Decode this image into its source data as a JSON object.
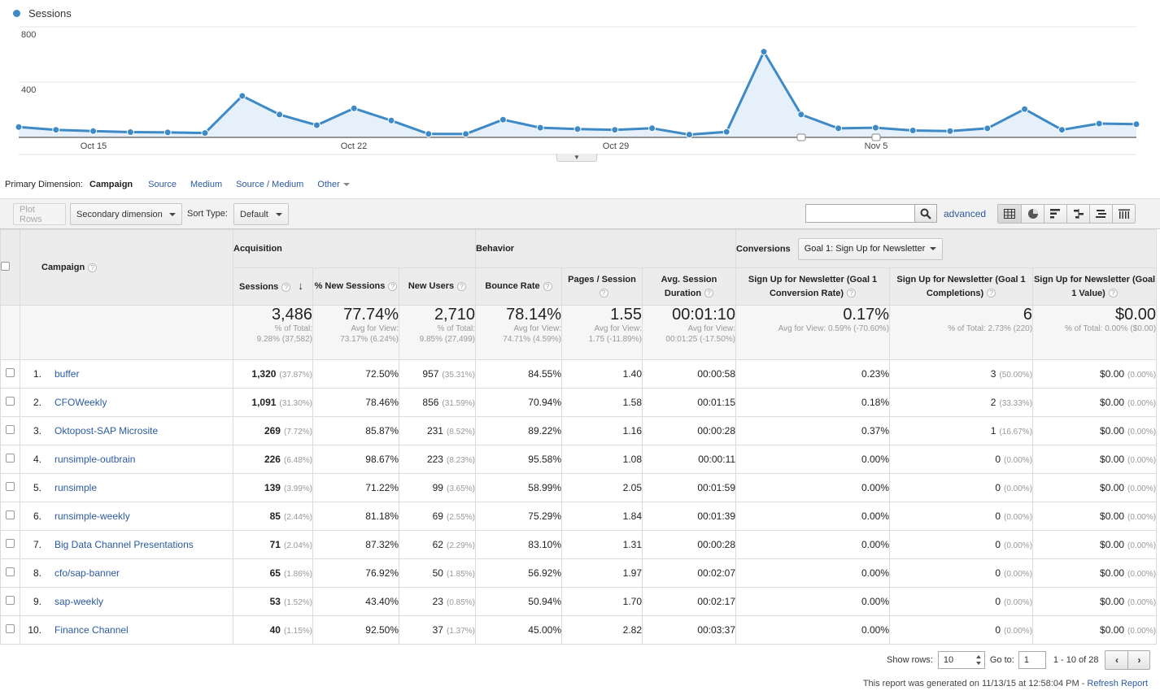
{
  "chart_data": {
    "type": "line",
    "series": [
      {
        "name": "Sessions",
        "values": [
          75,
          55,
          45,
          38,
          36,
          32,
          300,
          165,
          88,
          210,
          122,
          25,
          25,
          128,
          70,
          60,
          55,
          66,
          20,
          40,
          620,
          165,
          65,
          70,
          50,
          45,
          65,
          205,
          55,
          100,
          95
        ]
      }
    ],
    "yticks": [
      "800",
      "400"
    ],
    "ylim": [
      0,
      800
    ],
    "xtick_labels": [
      "Oct 15",
      "Oct 22",
      "Oct 29",
      "Nov 5"
    ],
    "colors": {
      "line": "#3d8ac7",
      "fill": "#e6f0fa"
    }
  },
  "legend": {
    "label": "Sessions"
  },
  "primary_dimension": {
    "label": "Primary Dimension:",
    "active": "Campaign",
    "links": [
      "Source",
      "Medium",
      "Source / Medium",
      "Other"
    ]
  },
  "toolbar": {
    "plot_rows": "Plot Rows",
    "secondary_dimension": "Secondary dimension",
    "sort_type_label": "Sort Type:",
    "sort_type_value": "Default",
    "search_value": "",
    "advanced": "advanced"
  },
  "table": {
    "campaign_header": "Campaign",
    "groups": {
      "acquisition": "Acquisition",
      "behavior": "Behavior",
      "conversions": "Conversions",
      "goal_select": "Goal 1: Sign Up for Newsletter"
    },
    "columns": [
      "Sessions",
      "% New Sessions",
      "New Users",
      "Bounce Rate",
      "Pages / Session",
      "Avg. Session Duration",
      "Sign Up for Newsletter (Goal 1 Conversion Rate)",
      "Sign Up for Newsletter (Goal 1 Completions)",
      "Sign Up for Newsletter (Goal 1 Value)"
    ],
    "totals": [
      {
        "value": "3,486",
        "sub1": "% of Total:",
        "sub2": "9.28% (37,582)"
      },
      {
        "value": "77.74%",
        "sub1": "Avg for View:",
        "sub2": "73.17% (6.24%)"
      },
      {
        "value": "2,710",
        "sub1": "% of Total:",
        "sub2": "9.85% (27,499)"
      },
      {
        "value": "78.14%",
        "sub1": "Avg for View:",
        "sub2": "74.71% (4.59%)"
      },
      {
        "value": "1.55",
        "sub1": "Avg for View:",
        "sub2": "1.75 (-11.89%)"
      },
      {
        "value": "00:01:10",
        "sub1": "Avg for View:",
        "sub2": "00:01:25 (-17.50%)"
      },
      {
        "value": "0.17%",
        "sub1": "Avg for View: 0.59% (-70.60%)",
        "sub2": ""
      },
      {
        "value": "6",
        "sub1": "% of Total: 2.73% (220)",
        "sub2": ""
      },
      {
        "value": "$0.00",
        "sub1": "% of Total: 0.00% ($0.00)",
        "sub2": ""
      }
    ],
    "rows": [
      {
        "n": "1.",
        "name": "buffer",
        "sessions": "1,320",
        "sessions_pct": "(37.87%)",
        "new_sessions": "72.50%",
        "new_users": "957",
        "new_users_pct": "(35.31%)",
        "bounce": "84.55%",
        "pages": "1.40",
        "duration": "00:00:58",
        "conv_rate": "0.23%",
        "completions": "3",
        "completions_pct": "(50.00%)",
        "value": "$0.00",
        "value_pct": "(0.00%)"
      },
      {
        "n": "2.",
        "name": "CFOWeekly",
        "sessions": "1,091",
        "sessions_pct": "(31.30%)",
        "new_sessions": "78.46%",
        "new_users": "856",
        "new_users_pct": "(31.59%)",
        "bounce": "70.94%",
        "pages": "1.58",
        "duration": "00:01:15",
        "conv_rate": "0.18%",
        "completions": "2",
        "completions_pct": "(33.33%)",
        "value": "$0.00",
        "value_pct": "(0.00%)"
      },
      {
        "n": "3.",
        "name": "Oktopost-SAP Microsite",
        "sessions": "269",
        "sessions_pct": "(7.72%)",
        "new_sessions": "85.87%",
        "new_users": "231",
        "new_users_pct": "(8.52%)",
        "bounce": "89.22%",
        "pages": "1.16",
        "duration": "00:00:28",
        "conv_rate": "0.37%",
        "completions": "1",
        "completions_pct": "(16.67%)",
        "value": "$0.00",
        "value_pct": "(0.00%)"
      },
      {
        "n": "4.",
        "name": "runsimple-outbrain",
        "sessions": "226",
        "sessions_pct": "(6.48%)",
        "new_sessions": "98.67%",
        "new_users": "223",
        "new_users_pct": "(8.23%)",
        "bounce": "95.58%",
        "pages": "1.08",
        "duration": "00:00:11",
        "conv_rate": "0.00%",
        "completions": "0",
        "completions_pct": "(0.00%)",
        "value": "$0.00",
        "value_pct": "(0.00%)"
      },
      {
        "n": "5.",
        "name": "runsimple",
        "sessions": "139",
        "sessions_pct": "(3.99%)",
        "new_sessions": "71.22%",
        "new_users": "99",
        "new_users_pct": "(3.65%)",
        "bounce": "58.99%",
        "pages": "2.05",
        "duration": "00:01:59",
        "conv_rate": "0.00%",
        "completions": "0",
        "completions_pct": "(0.00%)",
        "value": "$0.00",
        "value_pct": "(0.00%)"
      },
      {
        "n": "6.",
        "name": "runsimple-weekly",
        "sessions": "85",
        "sessions_pct": "(2.44%)",
        "new_sessions": "81.18%",
        "new_users": "69",
        "new_users_pct": "(2.55%)",
        "bounce": "75.29%",
        "pages": "1.84",
        "duration": "00:01:39",
        "conv_rate": "0.00%",
        "completions": "0",
        "completions_pct": "(0.00%)",
        "value": "$0.00",
        "value_pct": "(0.00%)"
      },
      {
        "n": "7.",
        "name": "Big Data Channel Presentations",
        "sessions": "71",
        "sessions_pct": "(2.04%)",
        "new_sessions": "87.32%",
        "new_users": "62",
        "new_users_pct": "(2.29%)",
        "bounce": "83.10%",
        "pages": "1.31",
        "duration": "00:00:28",
        "conv_rate": "0.00%",
        "completions": "0",
        "completions_pct": "(0.00%)",
        "value": "$0.00",
        "value_pct": "(0.00%)"
      },
      {
        "n": "8.",
        "name": "cfo/sap-banner",
        "sessions": "65",
        "sessions_pct": "(1.86%)",
        "new_sessions": "76.92%",
        "new_users": "50",
        "new_users_pct": "(1.85%)",
        "bounce": "56.92%",
        "pages": "1.97",
        "duration": "00:02:07",
        "conv_rate": "0.00%",
        "completions": "0",
        "completions_pct": "(0.00%)",
        "value": "$0.00",
        "value_pct": "(0.00%)"
      },
      {
        "n": "9.",
        "name": "sap-weekly",
        "sessions": "53",
        "sessions_pct": "(1.52%)",
        "new_sessions": "43.40%",
        "new_users": "23",
        "new_users_pct": "(0.85%)",
        "bounce": "50.94%",
        "pages": "1.70",
        "duration": "00:02:17",
        "conv_rate": "0.00%",
        "completions": "0",
        "completions_pct": "(0.00%)",
        "value": "$0.00",
        "value_pct": "(0.00%)"
      },
      {
        "n": "10.",
        "name": "Finance Channel",
        "sessions": "40",
        "sessions_pct": "(1.15%)",
        "new_sessions": "92.50%",
        "new_users": "37",
        "new_users_pct": "(1.37%)",
        "bounce": "45.00%",
        "pages": "2.82",
        "duration": "00:03:37",
        "conv_rate": "0.00%",
        "completions": "0",
        "completions_pct": "(0.00%)",
        "value": "$0.00",
        "value_pct": "(0.00%)"
      }
    ]
  },
  "footer": {
    "show_rows_label": "Show rows:",
    "show_rows_value": "10",
    "goto_label": "Go to:",
    "goto_value": "1",
    "range": "1 - 10 of 28",
    "generated": "This report was generated on 11/13/15 at 12:58:04 PM -",
    "refresh": "Refresh Report"
  }
}
